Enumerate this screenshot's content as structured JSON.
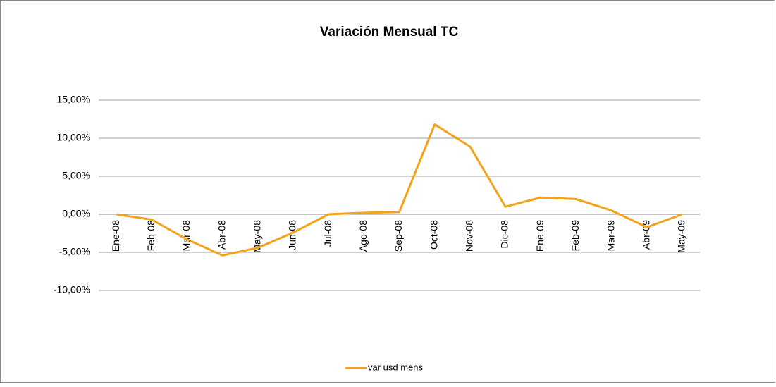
{
  "chart_data": {
    "type": "line",
    "title": "Variación Mensual TC",
    "categories": [
      "Ene-08",
      "Feb-08",
      "Mar-08",
      "Abr-08",
      "May-08",
      "Jun-08",
      "Jul-08",
      "Ago-08",
      "Sep-08",
      "Oct-08",
      "Nov-08",
      "Dic-08",
      "Ene-09",
      "Feb-09",
      "Mar-09",
      "Abr-09",
      "May-09"
    ],
    "series": [
      {
        "name": "var usd mens",
        "color": "#f5a21b",
        "values": [
          0,
          -0.7,
          -3.3,
          -5.4,
          -4.4,
          -2.4,
          0,
          0.2,
          0.3,
          11.8,
          8.9,
          1.0,
          2.2,
          2.0,
          0.5,
          -1.7,
          0
        ]
      }
    ],
    "ylim": [
      -10,
      15
    ],
    "yticks": [
      {
        "value": -10,
        "label": "-10,00%"
      },
      {
        "value": -5,
        "label": "-5,00%"
      },
      {
        "value": 0,
        "label": "0,00%"
      },
      {
        "value": 5,
        "label": "5,00%"
      },
      {
        "value": 10,
        "label": "10,00%"
      },
      {
        "value": 15,
        "label": "15,00%"
      }
    ],
    "grid": true,
    "legend": "bottom"
  }
}
